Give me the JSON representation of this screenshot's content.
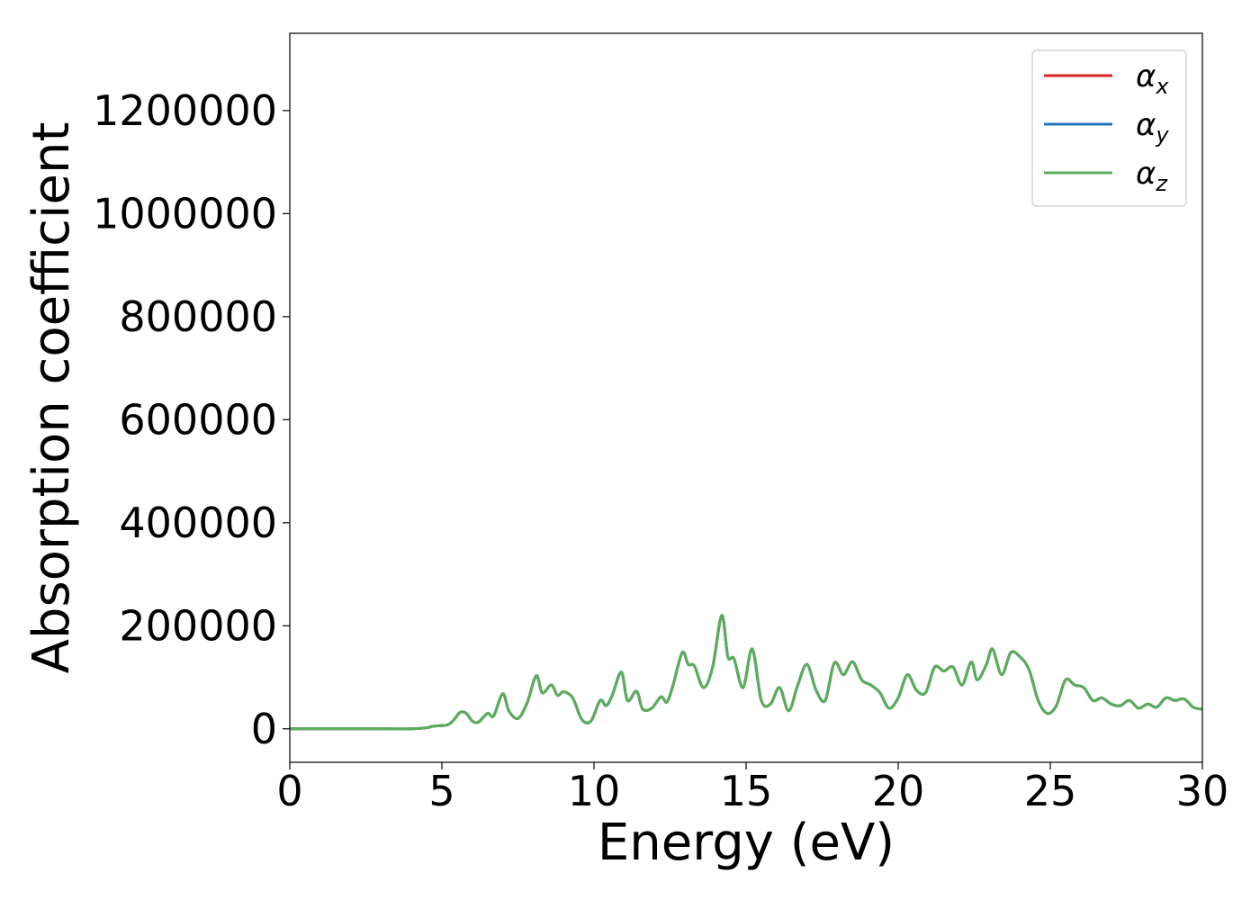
{
  "chart_data": {
    "type": "line",
    "title": "",
    "xlabel": "Energy (eV)",
    "ylabel": "Absorption coefficient",
    "xlim": [
      0,
      30
    ],
    "ylim": [
      -65000,
      1350000
    ],
    "xticks": [
      0,
      5,
      10,
      15,
      20,
      25,
      30
    ],
    "yticks": [
      0,
      200000,
      400000,
      600000,
      800000,
      1000000,
      1200000
    ],
    "grid": false,
    "legend_position": "top-right",
    "series": [
      {
        "name": "α_x",
        "symbol": "α",
        "subscript": "x",
        "color": "#d62728",
        "x": [
          0,
          1,
          2,
          3,
          4,
          4.5,
          4.7,
          4.9,
          5.2,
          5.4,
          5.6,
          5.8,
          6.0,
          6.2,
          6.5,
          6.7,
          7.0,
          7.2,
          7.5,
          7.8,
          8.1,
          8.3,
          8.6,
          8.8,
          9.0,
          9.3,
          9.6,
          9.9,
          10.2,
          10.4,
          10.6,
          10.9,
          11.1,
          11.4,
          11.6,
          11.9,
          12.2,
          12.4,
          12.6,
          12.9,
          13.1,
          13.3,
          13.6,
          13.9,
          14.2,
          14.4,
          14.6,
          14.9,
          15.2,
          15.5,
          15.8,
          16.1,
          16.4,
          16.7,
          17.0,
          17.3,
          17.6,
          17.9,
          18.2,
          18.5,
          18.8,
          19.1,
          19.4,
          19.7,
          20.0,
          20.3,
          20.6,
          20.9,
          21.2,
          21.5,
          21.8,
          22.1,
          22.4,
          22.6,
          22.9,
          23.1,
          23.4,
          23.7,
          24.0,
          24.3,
          24.6,
          24.9,
          25.2,
          25.5,
          25.8,
          26.1,
          26.4,
          26.7,
          27.0,
          27.3,
          27.6,
          27.9,
          28.2,
          28.5,
          28.8,
          29.1,
          29.4,
          29.7,
          30.0
        ],
        "values": [
          0,
          0,
          0,
          0,
          0,
          2000,
          5000,
          6000,
          8000,
          18000,
          32000,
          30000,
          15000,
          13000,
          30000,
          25000,
          68000,
          35000,
          20000,
          50000,
          103000,
          70000,
          85000,
          65000,
          72000,
          60000,
          18000,
          15000,
          55000,
          45000,
          65000,
          110000,
          55000,
          73000,
          38000,
          40000,
          62000,
          52000,
          85000,
          148000,
          125000,
          122000,
          80000,
          120000,
          220000,
          140000,
          136000,
          80000,
          155000,
          55000,
          48000,
          80000,
          35000,
          85000,
          125000,
          75000,
          55000,
          128000,
          105000,
          130000,
          95000,
          85000,
          70000,
          40000,
          60000,
          105000,
          75000,
          70000,
          120000,
          112000,
          120000,
          85000,
          130000,
          95000,
          125000,
          155000,
          105000,
          148000,
          140000,
          115000,
          55000,
          30000,
          45000,
          95000,
          85000,
          80000,
          55000,
          60000,
          48000,
          45000,
          55000,
          40000,
          48000,
          42000,
          60000,
          55000,
          58000,
          42000,
          38000
        ]
      },
      {
        "name": "α_y",
        "symbol": "α",
        "subscript": "y",
        "color": "#1f77b4",
        "x": [
          0,
          1,
          2,
          3,
          4,
          4.5,
          4.7,
          4.9,
          5.2,
          5.4,
          5.6,
          5.8,
          6.0,
          6.2,
          6.5,
          6.7,
          7.0,
          7.2,
          7.5,
          7.8,
          8.1,
          8.3,
          8.6,
          8.8,
          9.0,
          9.3,
          9.6,
          9.9,
          10.2,
          10.4,
          10.6,
          10.9,
          11.1,
          11.4,
          11.6,
          11.9,
          12.2,
          12.4,
          12.6,
          12.9,
          13.1,
          13.3,
          13.6,
          13.9,
          14.2,
          14.4,
          14.6,
          14.9,
          15.2,
          15.5,
          15.8,
          16.1,
          16.4,
          16.7,
          17.0,
          17.3,
          17.6,
          17.9,
          18.2,
          18.5,
          18.8,
          19.1,
          19.4,
          19.7,
          20.0,
          20.3,
          20.6,
          20.9,
          21.2,
          21.5,
          21.8,
          22.1,
          22.4,
          22.6,
          22.9,
          23.1,
          23.4,
          23.7,
          24.0,
          24.3,
          24.6,
          24.9,
          25.2,
          25.5,
          25.8,
          26.1,
          26.4,
          26.7,
          27.0,
          27.3,
          27.6,
          27.9,
          28.2,
          28.5,
          28.8,
          29.1,
          29.4,
          29.7,
          30.0
        ],
        "values": [
          0,
          0,
          0,
          0,
          0,
          2000,
          5000,
          6000,
          8000,
          18000,
          32000,
          30000,
          15000,
          13000,
          30000,
          25000,
          68000,
          35000,
          20000,
          50000,
          103000,
          70000,
          85000,
          65000,
          72000,
          60000,
          18000,
          15000,
          55000,
          45000,
          65000,
          110000,
          55000,
          73000,
          38000,
          40000,
          62000,
          52000,
          85000,
          148000,
          125000,
          122000,
          80000,
          120000,
          220000,
          140000,
          136000,
          80000,
          155000,
          55000,
          48000,
          80000,
          35000,
          85000,
          125000,
          75000,
          55000,
          128000,
          105000,
          130000,
          95000,
          85000,
          70000,
          40000,
          60000,
          105000,
          75000,
          70000,
          120000,
          112000,
          120000,
          85000,
          130000,
          95000,
          125000,
          155000,
          105000,
          148000,
          140000,
          115000,
          55000,
          30000,
          45000,
          95000,
          85000,
          80000,
          55000,
          60000,
          48000,
          45000,
          55000,
          40000,
          48000,
          42000,
          60000,
          55000,
          58000,
          42000,
          38000
        ]
      },
      {
        "name": "α_z",
        "symbol": "α",
        "subscript": "z",
        "color": "#5aae5a",
        "x": [
          0,
          1,
          2,
          3,
          4,
          4.5,
          4.7,
          4.9,
          5.2,
          5.4,
          5.6,
          5.8,
          6.0,
          6.2,
          6.5,
          6.7,
          7.0,
          7.2,
          7.5,
          7.8,
          8.1,
          8.3,
          8.6,
          8.8,
          9.0,
          9.3,
          9.6,
          9.9,
          10.2,
          10.4,
          10.6,
          10.9,
          11.1,
          11.4,
          11.6,
          11.9,
          12.2,
          12.4,
          12.6,
          12.9,
          13.1,
          13.3,
          13.6,
          13.9,
          14.2,
          14.4,
          14.6,
          14.9,
          15.2,
          15.5,
          15.8,
          16.1,
          16.4,
          16.7,
          17.0,
          17.3,
          17.6,
          17.9,
          18.2,
          18.5,
          18.8,
          19.1,
          19.4,
          19.7,
          20.0,
          20.3,
          20.6,
          20.9,
          21.2,
          21.5,
          21.8,
          22.1,
          22.4,
          22.6,
          22.9,
          23.1,
          23.4,
          23.7,
          24.0,
          24.3,
          24.6,
          24.9,
          25.2,
          25.5,
          25.8,
          26.1,
          26.4,
          26.7,
          27.0,
          27.3,
          27.6,
          27.9,
          28.2,
          28.5,
          28.8,
          29.1,
          29.4,
          29.7,
          30.0
        ],
        "values": [
          0,
          0,
          0,
          0,
          0,
          2000,
          5000,
          6000,
          8000,
          18000,
          32000,
          30000,
          15000,
          13000,
          30000,
          25000,
          68000,
          35000,
          20000,
          50000,
          103000,
          70000,
          85000,
          65000,
          72000,
          60000,
          18000,
          15000,
          55000,
          45000,
          65000,
          110000,
          55000,
          73000,
          38000,
          40000,
          62000,
          52000,
          85000,
          148000,
          125000,
          122000,
          80000,
          120000,
          220000,
          140000,
          136000,
          80000,
          155000,
          55000,
          48000,
          80000,
          35000,
          85000,
          125000,
          75000,
          55000,
          128000,
          105000,
          130000,
          95000,
          85000,
          70000,
          40000,
          60000,
          105000,
          75000,
          70000,
          120000,
          112000,
          120000,
          85000,
          130000,
          95000,
          125000,
          155000,
          105000,
          148000,
          140000,
          115000,
          55000,
          30000,
          45000,
          95000,
          85000,
          80000,
          55000,
          60000,
          48000,
          45000,
          55000,
          40000,
          48000,
          42000,
          60000,
          55000,
          58000,
          42000,
          38000
        ]
      }
    ]
  }
}
